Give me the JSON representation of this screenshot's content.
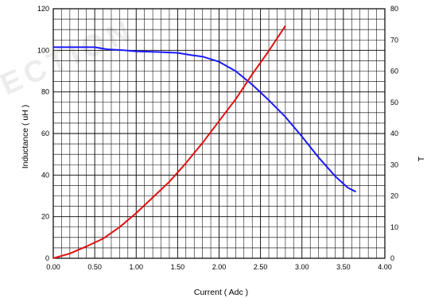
{
  "chart_data": {
    "type": "line",
    "xlabel": "Current   ( Adc )",
    "ylabel_left": "Inductance   ( uH )",
    "ylabel_right": "T",
    "watermark": "ECTION",
    "xlim": [
      0,
      4
    ],
    "ylim_left": [
      0,
      120
    ],
    "ylim_right": [
      0,
      80
    ],
    "x_ticks": [
      "0.00",
      "0.50",
      "1.00",
      "1.50",
      "2.00",
      "2.50",
      "3.00",
      "3.50",
      "4.00"
    ],
    "y_left_ticks": [
      "0",
      "20",
      "40",
      "60",
      "80",
      "100",
      "120"
    ],
    "y_right_ticks": [
      "0",
      "10",
      "20",
      "30",
      "40",
      "50",
      "60",
      "70",
      "80"
    ],
    "grid": true,
    "series": [
      {
        "axis": "left",
        "color": "#1a1aff",
        "points": [
          [
            0.0,
            101.5
          ],
          [
            0.25,
            101.5
          ],
          [
            0.5,
            101.5
          ],
          [
            0.65,
            100.5
          ],
          [
            0.85,
            100.0
          ],
          [
            1.0,
            99.5
          ],
          [
            1.25,
            99.2
          ],
          [
            1.5,
            98.8
          ],
          [
            1.65,
            97.8
          ],
          [
            1.8,
            97.0
          ],
          [
            2.0,
            94.5
          ],
          [
            2.2,
            90.0
          ],
          [
            2.4,
            83.5
          ],
          [
            2.6,
            76.0
          ],
          [
            2.8,
            68.0
          ],
          [
            3.0,
            58.5
          ],
          [
            3.2,
            48.5
          ],
          [
            3.4,
            39.5
          ],
          [
            3.55,
            34.0
          ],
          [
            3.65,
            32.0
          ]
        ]
      },
      {
        "axis": "right",
        "color": "#e01010",
        "points": [
          [
            0.0,
            0.0
          ],
          [
            0.2,
            1.5
          ],
          [
            0.4,
            3.8
          ],
          [
            0.6,
            6.3
          ],
          [
            0.8,
            10.0
          ],
          [
            1.0,
            14.5
          ],
          [
            1.2,
            19.5
          ],
          [
            1.4,
            24.5
          ],
          [
            1.6,
            30.5
          ],
          [
            1.8,
            37.0
          ],
          [
            2.0,
            44.0
          ],
          [
            2.2,
            51.0
          ],
          [
            2.4,
            59.0
          ],
          [
            2.6,
            66.5
          ],
          [
            2.8,
            74.5
          ]
        ]
      }
    ]
  }
}
